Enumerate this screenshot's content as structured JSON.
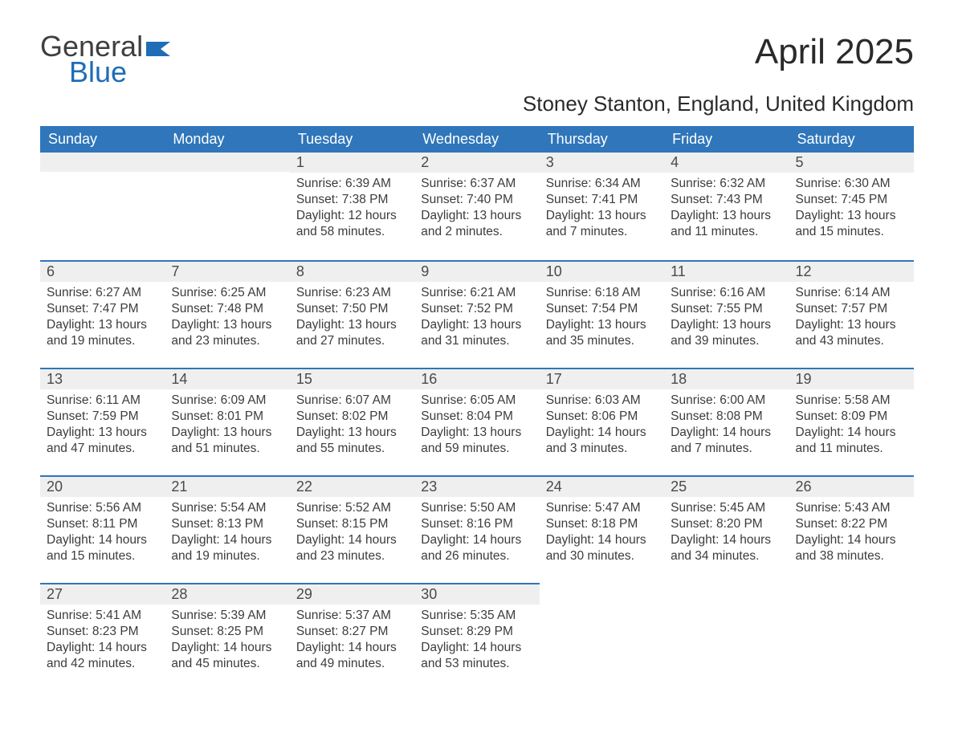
{
  "brand": {
    "part1": "General",
    "part2": "Blue",
    "flag_color": "#1f6db6"
  },
  "title": "April 2025",
  "location": "Stoney Stanton, England, United Kingdom",
  "colors": {
    "header_bg": "#2f76bb",
    "header_text": "#ffffff",
    "daynum_bg": "#efefef",
    "row_border": "#2f76bb",
    "body_text": "#3c3c3c",
    "page_bg": "#ffffff"
  },
  "typography": {
    "title_fontsize": 44,
    "location_fontsize": 26,
    "weekday_fontsize": 18,
    "daynum_fontsize": 18,
    "cell_fontsize": 15.5
  },
  "layout": {
    "columns": 7,
    "rows": 5,
    "week_start": "Sunday"
  },
  "weekdays": [
    "Sunday",
    "Monday",
    "Tuesday",
    "Wednesday",
    "Thursday",
    "Friday",
    "Saturday"
  ],
  "labels": {
    "sunrise": "Sunrise:",
    "sunset": "Sunset:",
    "daylight": "Daylight:"
  },
  "grid": [
    [
      null,
      null,
      {
        "n": "1",
        "sr": "6:39 AM",
        "ss": "7:38 PM",
        "dl": "12 hours and 58 minutes."
      },
      {
        "n": "2",
        "sr": "6:37 AM",
        "ss": "7:40 PM",
        "dl": "13 hours and 2 minutes."
      },
      {
        "n": "3",
        "sr": "6:34 AM",
        "ss": "7:41 PM",
        "dl": "13 hours and 7 minutes."
      },
      {
        "n": "4",
        "sr": "6:32 AM",
        "ss": "7:43 PM",
        "dl": "13 hours and 11 minutes."
      },
      {
        "n": "5",
        "sr": "6:30 AM",
        "ss": "7:45 PM",
        "dl": "13 hours and 15 minutes."
      }
    ],
    [
      {
        "n": "6",
        "sr": "6:27 AM",
        "ss": "7:47 PM",
        "dl": "13 hours and 19 minutes."
      },
      {
        "n": "7",
        "sr": "6:25 AM",
        "ss": "7:48 PM",
        "dl": "13 hours and 23 minutes."
      },
      {
        "n": "8",
        "sr": "6:23 AM",
        "ss": "7:50 PM",
        "dl": "13 hours and 27 minutes."
      },
      {
        "n": "9",
        "sr": "6:21 AM",
        "ss": "7:52 PM",
        "dl": "13 hours and 31 minutes."
      },
      {
        "n": "10",
        "sr": "6:18 AM",
        "ss": "7:54 PM",
        "dl": "13 hours and 35 minutes."
      },
      {
        "n": "11",
        "sr": "6:16 AM",
        "ss": "7:55 PM",
        "dl": "13 hours and 39 minutes."
      },
      {
        "n": "12",
        "sr": "6:14 AM",
        "ss": "7:57 PM",
        "dl": "13 hours and 43 minutes."
      }
    ],
    [
      {
        "n": "13",
        "sr": "6:11 AM",
        "ss": "7:59 PM",
        "dl": "13 hours and 47 minutes."
      },
      {
        "n": "14",
        "sr": "6:09 AM",
        "ss": "8:01 PM",
        "dl": "13 hours and 51 minutes."
      },
      {
        "n": "15",
        "sr": "6:07 AM",
        "ss": "8:02 PM",
        "dl": "13 hours and 55 minutes."
      },
      {
        "n": "16",
        "sr": "6:05 AM",
        "ss": "8:04 PM",
        "dl": "13 hours and 59 minutes."
      },
      {
        "n": "17",
        "sr": "6:03 AM",
        "ss": "8:06 PM",
        "dl": "14 hours and 3 minutes."
      },
      {
        "n": "18",
        "sr": "6:00 AM",
        "ss": "8:08 PM",
        "dl": "14 hours and 7 minutes."
      },
      {
        "n": "19",
        "sr": "5:58 AM",
        "ss": "8:09 PM",
        "dl": "14 hours and 11 minutes."
      }
    ],
    [
      {
        "n": "20",
        "sr": "5:56 AM",
        "ss": "8:11 PM",
        "dl": "14 hours and 15 minutes."
      },
      {
        "n": "21",
        "sr": "5:54 AM",
        "ss": "8:13 PM",
        "dl": "14 hours and 19 minutes."
      },
      {
        "n": "22",
        "sr": "5:52 AM",
        "ss": "8:15 PM",
        "dl": "14 hours and 23 minutes."
      },
      {
        "n": "23",
        "sr": "5:50 AM",
        "ss": "8:16 PM",
        "dl": "14 hours and 26 minutes."
      },
      {
        "n": "24",
        "sr": "5:47 AM",
        "ss": "8:18 PM",
        "dl": "14 hours and 30 minutes."
      },
      {
        "n": "25",
        "sr": "5:45 AM",
        "ss": "8:20 PM",
        "dl": "14 hours and 34 minutes."
      },
      {
        "n": "26",
        "sr": "5:43 AM",
        "ss": "8:22 PM",
        "dl": "14 hours and 38 minutes."
      }
    ],
    [
      {
        "n": "27",
        "sr": "5:41 AM",
        "ss": "8:23 PM",
        "dl": "14 hours and 42 minutes."
      },
      {
        "n": "28",
        "sr": "5:39 AM",
        "ss": "8:25 PM",
        "dl": "14 hours and 45 minutes."
      },
      {
        "n": "29",
        "sr": "5:37 AM",
        "ss": "8:27 PM",
        "dl": "14 hours and 49 minutes."
      },
      {
        "n": "30",
        "sr": "5:35 AM",
        "ss": "8:29 PM",
        "dl": "14 hours and 53 minutes."
      },
      null,
      null,
      null
    ]
  ]
}
